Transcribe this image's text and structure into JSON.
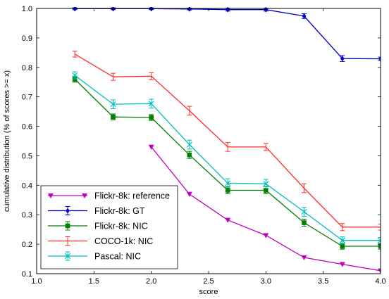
{
  "chart_data": {
    "type": "line",
    "title": "",
    "xlabel": "score",
    "ylabel": "cumulative distribution (% of scores >= x)",
    "xlim": [
      1.0,
      4.0
    ],
    "ylim": [
      0.1,
      1.0
    ],
    "xticks": [
      "1.0",
      "1.5",
      "2.0",
      "2.5",
      "3.0",
      "3.5",
      "4.0"
    ],
    "yticks": [
      "0.1",
      "0.2",
      "0.3",
      "0.4",
      "0.5",
      "0.6",
      "0.7",
      "0.8",
      "0.9",
      "1.0"
    ],
    "grid": false,
    "legend_position": "bottom-left",
    "series": [
      {
        "name": "Flickr-8k: reference",
        "color": "#bf00bf",
        "marker": "triangle-down",
        "x": [
          2.0,
          2.333,
          2.667,
          3.0,
          3.333,
          3.667,
          4.0
        ],
        "y": [
          0.53,
          0.37,
          0.282,
          0.23,
          0.155,
          0.132,
          0.11
        ],
        "err": [
          0,
          0,
          0,
          0,
          0,
          0,
          0
        ]
      },
      {
        "name": "Flickr-8k: GT",
        "color": "#0000cc",
        "marker": "diamond",
        "x": [
          1.333,
          1.667,
          2.0,
          2.333,
          2.667,
          3.0,
          3.333,
          3.667,
          4.0
        ],
        "y": [
          0.999,
          0.999,
          0.999,
          0.998,
          0.996,
          0.996,
          0.974,
          0.83,
          0.829
        ],
        "err": [
          0.003,
          0.003,
          0.003,
          0.003,
          0.005,
          0.005,
          0.008,
          0.01,
          0.006
        ]
      },
      {
        "name": "Flickr-8k: NIC",
        "color": "#007f00",
        "marker": "square",
        "x": [
          1.333,
          1.667,
          2.0,
          2.333,
          2.667,
          3.0,
          3.333,
          3.667,
          4.0
        ],
        "y": [
          0.76,
          0.632,
          0.63,
          0.503,
          0.383,
          0.383,
          0.273,
          0.193,
          0.193
        ],
        "err": [
          0.01,
          0.01,
          0.01,
          0.012,
          0.012,
          0.012,
          0.012,
          0.01,
          0.01
        ]
      },
      {
        "name": "COCO-1k: NIC",
        "color": "#ff2a2a",
        "marker": "none",
        "x": [
          1.333,
          1.667,
          2.0,
          2.333,
          2.667,
          3.0,
          3.333,
          3.667,
          4.0
        ],
        "y": [
          0.845,
          0.768,
          0.77,
          0.653,
          0.53,
          0.53,
          0.39,
          0.258,
          0.258
        ],
        "err": [
          0.01,
          0.012,
          0.012,
          0.015,
          0.015,
          0.012,
          0.015,
          0.012,
          0.01
        ]
      },
      {
        "name": "Pascal: NIC",
        "color": "#00bfbf",
        "marker": "x",
        "x": [
          1.333,
          1.667,
          2.0,
          2.333,
          2.667,
          3.0,
          3.333,
          3.667,
          4.0
        ],
        "y": [
          0.773,
          0.675,
          0.677,
          0.538,
          0.407,
          0.405,
          0.31,
          0.213,
          0.213
        ],
        "err": [
          0.012,
          0.015,
          0.015,
          0.015,
          0.015,
          0.015,
          0.015,
          0.012,
          0.01
        ]
      }
    ]
  }
}
